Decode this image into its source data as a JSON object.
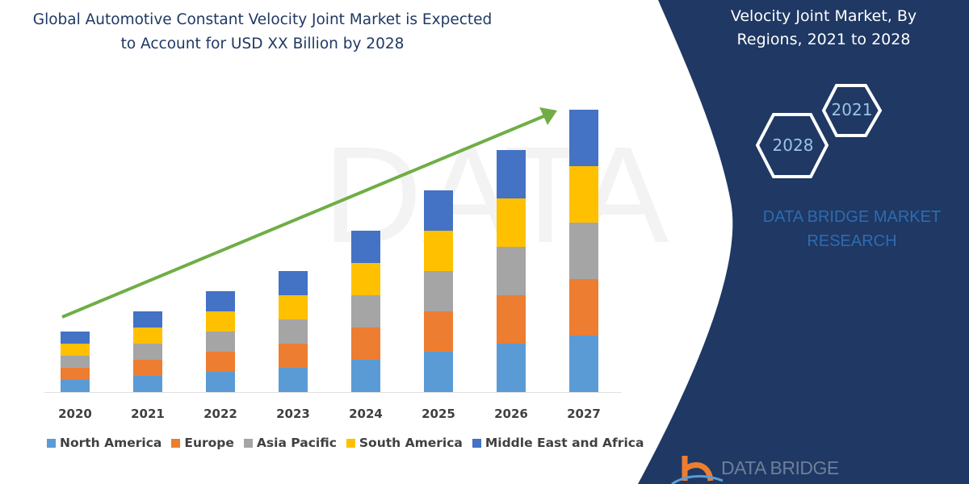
{
  "title_lines": [
    "Global Automotive Constant Velocity Joint Market is Expected",
    "to Account for USD XX Billion by 2028"
  ],
  "side_panel": {
    "title_lines": [
      "Velocity Joint Market, By",
      "Regions, 2021 to 2028"
    ],
    "hexagons": [
      "2021",
      "2028"
    ],
    "brand_lines": [
      "DATA BRIDGE MARKET",
      "RESEARCH"
    ],
    "logo_text": "DATA BRIDGE",
    "panel_color": "#1f3864"
  },
  "chart_data": {
    "type": "bar",
    "stacked": true,
    "categories": [
      "2020",
      "2021",
      "2022",
      "2023",
      "2024",
      "2025",
      "2026",
      "2027"
    ],
    "series": [
      {
        "name": "North America",
        "color": "#5b9bd5",
        "values": [
          15,
          20,
          25,
          30,
          40,
          50,
          60,
          70
        ]
      },
      {
        "name": "Europe",
        "color": "#ed7d31",
        "values": [
          15,
          20,
          25,
          30,
          40,
          50,
          60,
          70
        ]
      },
      {
        "name": "Asia Pacific",
        "color": "#a5a5a5",
        "values": [
          15,
          20,
          25,
          30,
          40,
          50,
          60,
          70
        ]
      },
      {
        "name": "South America",
        "color": "#ffc000",
        "values": [
          15,
          20,
          25,
          30,
          40,
          50,
          60,
          70
        ]
      },
      {
        "name": "Middle East and Africa",
        "color": "#4472c4",
        "values": [
          15,
          20,
          25,
          30,
          40,
          50,
          60,
          70
        ]
      }
    ],
    "y_axis_shown": false,
    "grid": false,
    "legend_position": "bottom",
    "trend_arrow": {
      "color": "#70ad47",
      "direction": "up"
    }
  }
}
